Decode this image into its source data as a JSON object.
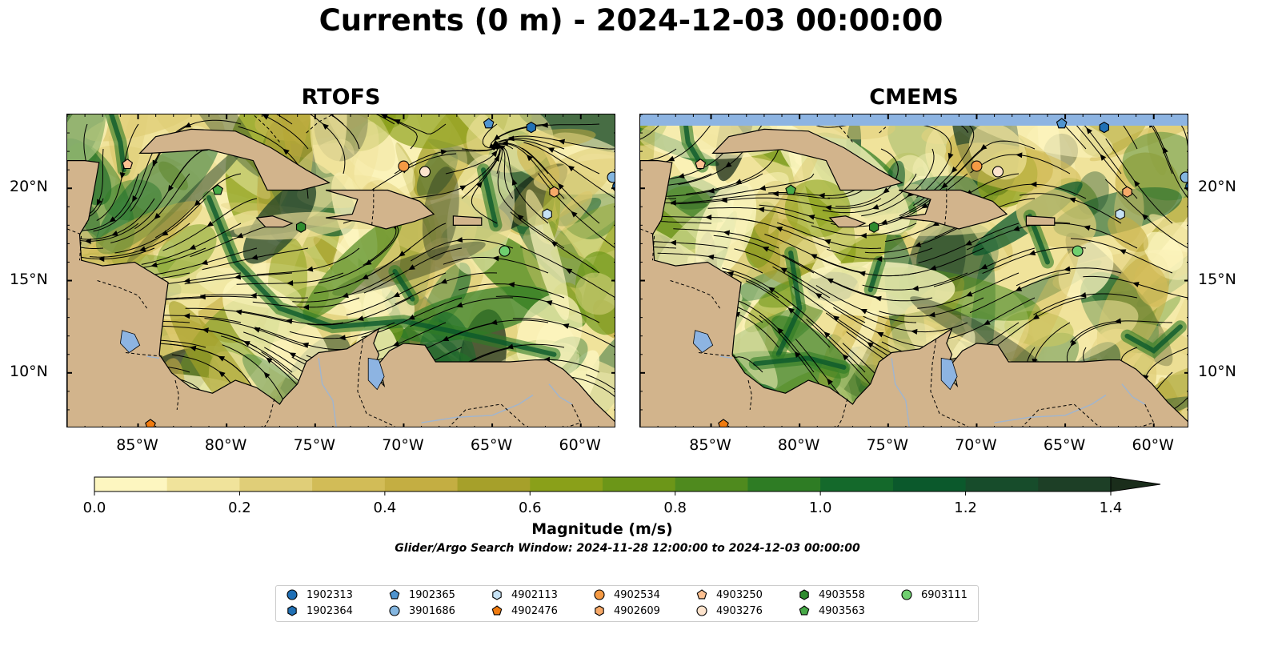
{
  "title": "Currents (0 m) - 2024-12-03 00:00:00",
  "panels": [
    {
      "title": "RTOFS"
    },
    {
      "title": "CMEMS"
    }
  ],
  "map": {
    "lon_range": [
      -89.0,
      -58.0
    ],
    "lat_range": [
      7.0,
      24.0
    ],
    "lon_ticks": [
      "85°W",
      "80°W",
      "75°W",
      "70°W",
      "65°W",
      "60°W"
    ],
    "lat_ticks": [
      "20°N",
      "15°N",
      "10°N"
    ],
    "lon_tick_values": [
      -85,
      -80,
      -75,
      -70,
      -65,
      -60
    ],
    "lat_tick_values": [
      20,
      15,
      10
    ],
    "land_color": "#d2b48c",
    "lake_color": "#8db4e2",
    "streamline_color": "#000000"
  },
  "colorbar": {
    "label": "Magnitude (m/s)",
    "range": [
      0.0,
      1.5
    ],
    "extend": "max",
    "ticks": [
      "0.0",
      "0.2",
      "0.4",
      "0.6",
      "0.8",
      "1.0",
      "1.2",
      "1.4"
    ],
    "tick_values": [
      0.0,
      0.2,
      0.4,
      0.6,
      0.8,
      1.0,
      1.2,
      1.4
    ],
    "colors": [
      "#fdf6c0",
      "#f0e39b",
      "#e0ce78",
      "#d2bc57",
      "#c4ae42",
      "#a6a02a",
      "#8aa019",
      "#6c9618",
      "#4f8a1e",
      "#2e7c24",
      "#14692b",
      "#0b592c",
      "#174c2b",
      "#1d3f26",
      "#1a2d1b"
    ]
  },
  "search_window": "Glider/Argo Search Window: 2024-11-28 12:00:00 to 2024-12-03 00:00:00",
  "floats": [
    {
      "id": "1902313",
      "marker": "circle",
      "color": "#1f6fb5",
      "lon": -57.9,
      "lat": 20.1
    },
    {
      "id": "1902364",
      "marker": "hexagon",
      "color": "#2171b5",
      "lon": -62.8,
      "lat": 23.3
    },
    {
      "id": "1902365",
      "marker": "pentagon",
      "color": "#4f94cf",
      "lon": -65.2,
      "lat": 23.5
    },
    {
      "id": "3901686",
      "marker": "circle",
      "color": "#84b6e0",
      "lon": -58.2,
      "lat": 20.6
    },
    {
      "id": "4902113",
      "marker": "hexagon",
      "color": "#c6e2f5",
      "lon": -61.9,
      "lat": 18.6
    },
    {
      "id": "4902476",
      "marker": "pentagon",
      "color": "#f07b0f",
      "lon": -84.3,
      "lat": 7.2
    },
    {
      "id": "4902534",
      "marker": "circle",
      "color": "#f59a44",
      "lon": -70.0,
      "lat": 21.2
    },
    {
      "id": "4902609",
      "marker": "hexagon",
      "color": "#f7a968",
      "lon": -61.5,
      "lat": 19.8
    },
    {
      "id": "4903250",
      "marker": "pentagon",
      "color": "#fcc091",
      "lon": -85.6,
      "lat": 21.3
    },
    {
      "id": "4903276",
      "marker": "circle",
      "color": "#fde3cc",
      "lon": -68.8,
      "lat": 20.9
    },
    {
      "id": "4903558",
      "marker": "hexagon",
      "color": "#2e8b2e",
      "lon": -75.8,
      "lat": 17.9
    },
    {
      "id": "4903563",
      "marker": "pentagon",
      "color": "#48aa48",
      "lon": -80.5,
      "lat": 19.9
    },
    {
      "id": "6903111",
      "marker": "circle",
      "color": "#6fcf6f",
      "lon": -64.3,
      "lat": 16.6
    }
  ]
}
